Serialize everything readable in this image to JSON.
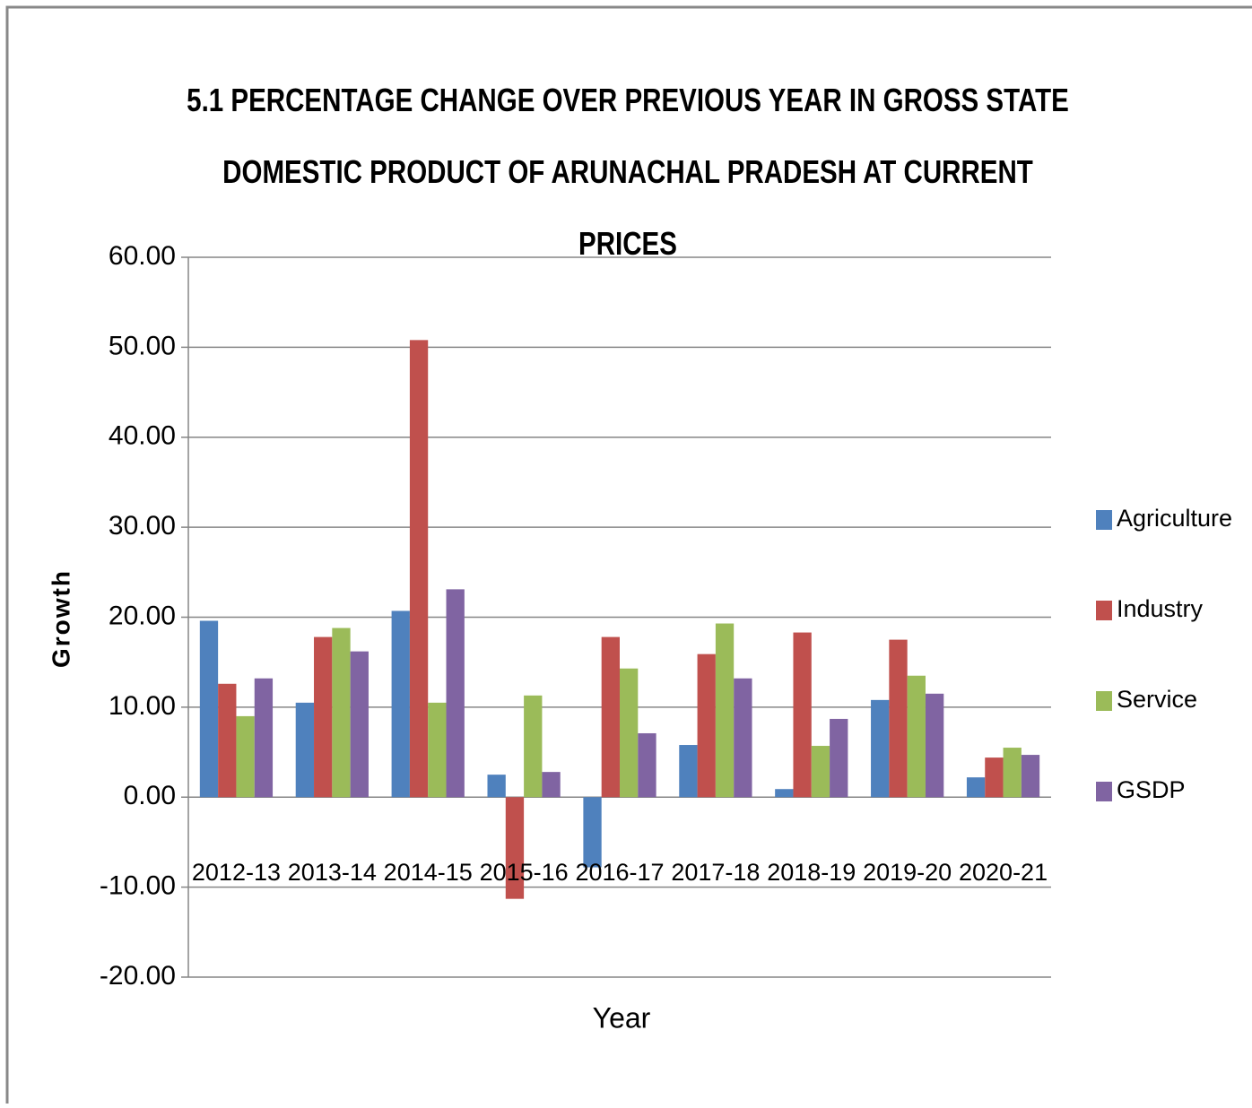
{
  "chart_data": {
    "type": "bar",
    "title": "5.1 PERCENTAGE CHANGE OVER PREVIOUS YEAR IN GROSS STATE\nDOMESTIC PRODUCT OF ARUNACHAL PRADESH  AT CURRENT PRICES",
    "x_label": "Year",
    "y_label": "Growth",
    "categories": [
      "2012-13",
      "2013-14",
      "2014-15",
      "2015-16",
      "2016-17",
      "2017-18",
      "2018-19",
      "2019-20",
      "2020-21"
    ],
    "series": [
      {
        "name": "Agriculture",
        "color": "#4f81bd",
        "values": [
          19.6,
          10.5,
          20.7,
          2.5,
          -7.8,
          5.8,
          0.9,
          10.8,
          2.2
        ]
      },
      {
        "name": "Industry",
        "color": "#c0504d",
        "values": [
          12.6,
          17.8,
          50.8,
          -11.3,
          17.8,
          15.9,
          18.3,
          17.5,
          4.4
        ]
      },
      {
        "name": "Service",
        "color": "#9bbb59",
        "values": [
          9.0,
          18.8,
          10.5,
          11.3,
          14.3,
          19.3,
          5.7,
          13.5,
          5.5
        ]
      },
      {
        "name": "GSDP",
        "color": "#8064a2",
        "values": [
          13.2,
          16.2,
          23.1,
          2.8,
          7.1,
          13.2,
          8.7,
          11.5,
          4.7
        ]
      }
    ],
    "ylim": [
      -20,
      60
    ],
    "yticks": [
      {
        "value": -20,
        "label": "-20.00"
      },
      {
        "value": -10,
        "label": "-10.00"
      },
      {
        "value": 0,
        "label": "0.00"
      },
      {
        "value": 10,
        "label": "10.00"
      },
      {
        "value": 20,
        "label": "20.00"
      },
      {
        "value": 30,
        "label": "30.00"
      },
      {
        "value": 40,
        "label": "40.00"
      },
      {
        "value": 50,
        "label": "50.00"
      },
      {
        "value": 60,
        "label": "60.00"
      }
    ],
    "grid": true,
    "legend": "right"
  }
}
